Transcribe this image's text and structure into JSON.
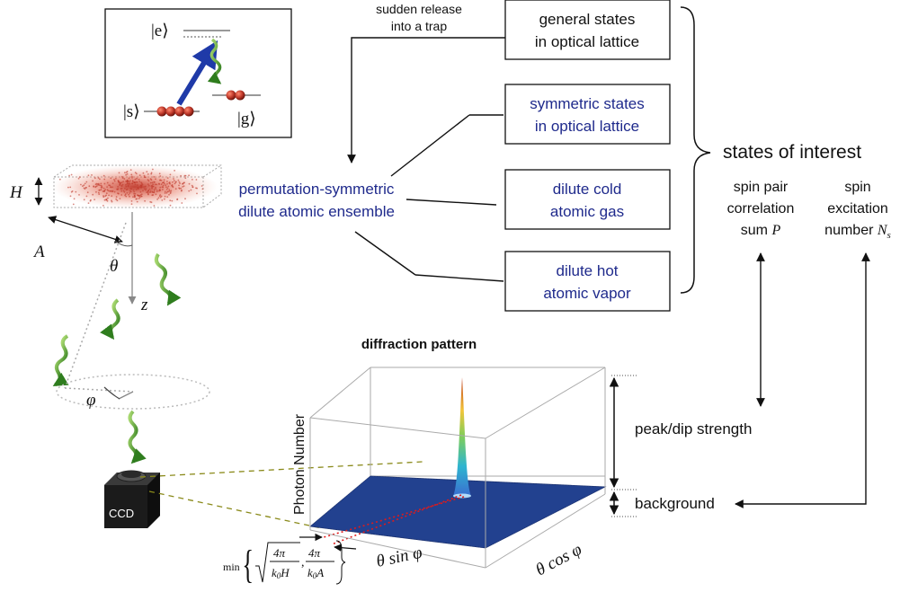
{
  "colors": {
    "accent_blue": "#1f2a8c",
    "atom_red": "#c0392b",
    "photon_green": "#3c9a2a",
    "peak_dark": "#1a3a8c"
  },
  "level_diagram": {
    "excited": "|e⟩",
    "spin": "|s⟩",
    "ground": "|g⟩"
  },
  "ensemble": {
    "label_line1": "permutation-symmetric",
    "label_line2": "dilute atomic ensemble",
    "height_symbol": "H",
    "width_symbol": "A",
    "angle_theta": "θ",
    "axis_z": "z",
    "angle_phi": "φ"
  },
  "trap_note": {
    "line1": "sudden release",
    "line2": "into a trap"
  },
  "states": [
    {
      "line1": "general states",
      "line2": "in optical lattice",
      "color": "#111111"
    },
    {
      "line1": "symmetric states",
      "line2": "in optical lattice",
      "color": "#1f2a8c"
    },
    {
      "line1": "dilute cold",
      "line2": "atomic gas",
      "color": "#1f2a8c"
    },
    {
      "line1": "dilute hot",
      "line2": "atomic vapor",
      "color": "#1f2a8c"
    }
  ],
  "states_of_interest": "states of interest",
  "quantity_p": {
    "line1": "spin pair",
    "line2": "correlation",
    "line3": "sum",
    "symbol": "P"
  },
  "quantity_ns": {
    "line1": "spin",
    "line2": "excitation",
    "line3": "number",
    "symbol": "N",
    "subscript": "s"
  },
  "diffraction": {
    "title": "diffraction pattern",
    "z_axis": "Photon Number",
    "x_axis": "θ sin φ",
    "y_axis": "θ cos φ",
    "peak_label": "peak/dip strength",
    "background_label": "background",
    "width_min": "min",
    "frac1_num": "4π",
    "frac1_den_k": "k",
    "frac1_den_sub": "0",
    "frac1_den_var": "H",
    "frac2_num": "4π",
    "frac2_den_k": "k",
    "frac2_den_sub": "0",
    "frac2_den_var": "A",
    "comma": ","
  },
  "detector": {
    "label": "CCD"
  }
}
